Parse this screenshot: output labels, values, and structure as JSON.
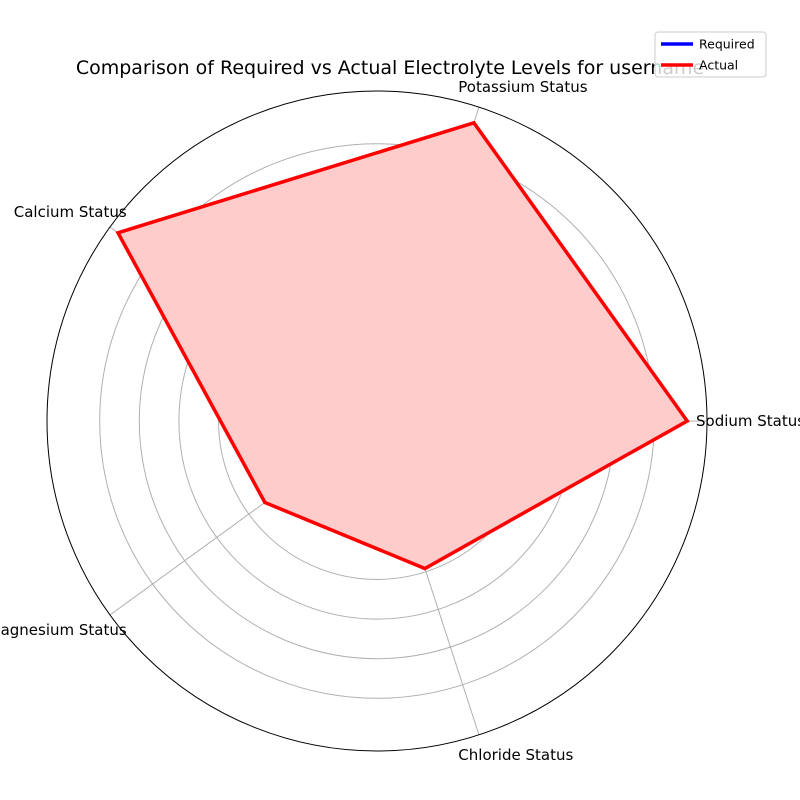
{
  "chart_data": {
    "type": "radar",
    "title": "Comparison of Required vs Actual Electrolyte Levels for username",
    "categories": [
      "Sodium Status",
      "Potassium Status",
      "Calcium Status",
      "Magnesium Status",
      "Chloride Status"
    ],
    "series": [
      {
        "name": "Required",
        "color": "#0000ff",
        "values": [
          0,
          0,
          0,
          0,
          0
        ]
      },
      {
        "name": "Actual",
        "color": "#ff0000",
        "fill": "#ffcccc",
        "values": [
          0.94,
          0.95,
          0.97,
          0.42,
          0.47
        ]
      }
    ],
    "rlim": [
      0,
      1
    ],
    "grid": true,
    "legend_position": "top-right",
    "show_radial_tick_labels": false
  }
}
